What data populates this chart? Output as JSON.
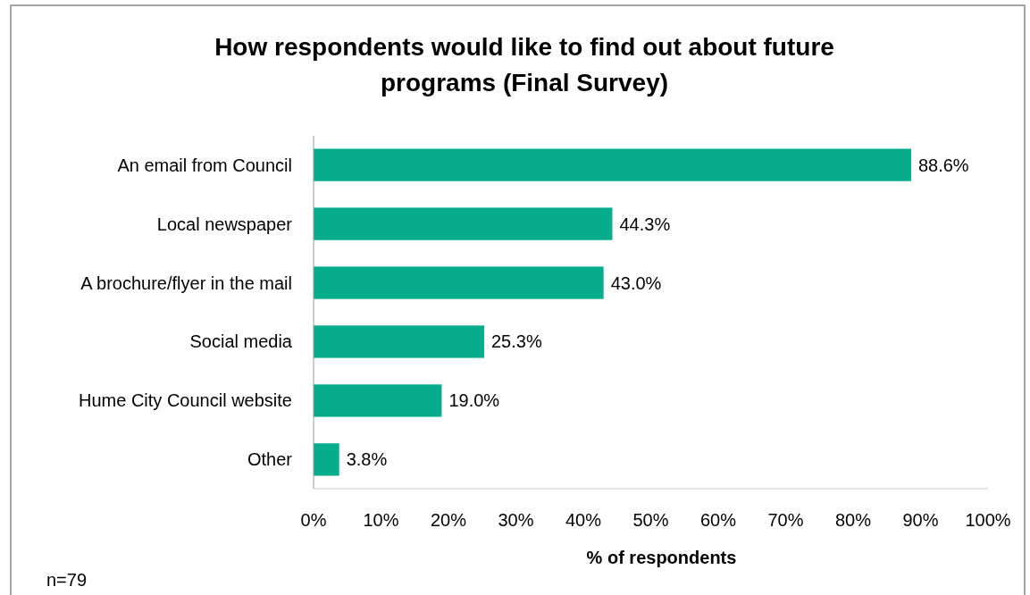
{
  "chart_data": {
    "type": "bar",
    "orientation": "horizontal",
    "title": "How respondents would like to find out about future programs (Final Survey)",
    "xlabel": "% of respondents",
    "categories": [
      "An email from Council",
      "Local newspaper",
      "A brochure/flyer in the mail",
      "Social media",
      "Hume City Council website",
      "Other"
    ],
    "values": [
      88.6,
      44.3,
      43.0,
      25.3,
      19.0,
      3.8
    ],
    "value_labels": [
      "88.6%",
      "44.3%",
      "43.0%",
      "25.3%",
      "19.0%",
      "3.8%"
    ],
    "color": "#05ad8d",
    "xlim": [
      0,
      100
    ],
    "xticks": [
      {
        "value": 0,
        "label": "0%"
      },
      {
        "value": 10,
        "label": "10%"
      },
      {
        "value": 20,
        "label": "20%"
      },
      {
        "value": 30,
        "label": "30%"
      },
      {
        "value": 40,
        "label": "40%"
      },
      {
        "value": 50,
        "label": "50%"
      },
      {
        "value": 60,
        "label": "60%"
      },
      {
        "value": 70,
        "label": "70%"
      },
      {
        "value": 80,
        "label": "80%"
      },
      {
        "value": 90,
        "label": "90%"
      },
      {
        "value": 100,
        "label": "100%"
      }
    ],
    "grid": false,
    "annotations": [
      "n=79"
    ]
  }
}
